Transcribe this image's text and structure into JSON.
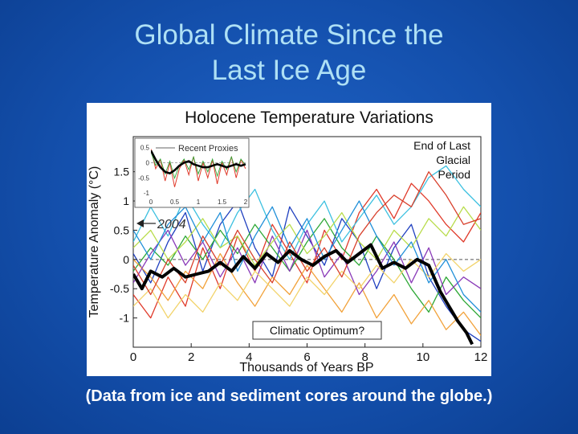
{
  "slide": {
    "title_line1": "Global Climate Since the",
    "title_line2": "Last Ice Age",
    "caption": "(Data from ice and sediment cores around the globe.)"
  },
  "colors": {
    "background": "#1450ad",
    "title": "#aee0f5",
    "caption": "#ffffff",
    "chart_background": "#ffffff",
    "average_line": "#000000",
    "proxy_colors": [
      "#1f3fbf",
      "#e03a2a",
      "#3cc0e0",
      "#2ea836",
      "#f2a23a",
      "#8a3ab8",
      "#b8dc4a",
      "#f2d36a",
      "#1f8fd8",
      "#d8402c"
    ]
  },
  "chart_data": [
    {
      "type": "line",
      "title": "Holocene Temperature Variations",
      "xlabel": "Thousands of Years BP",
      "ylabel": "Temperature Anomaly (°C)",
      "xlim": [
        0,
        12
      ],
      "ylim": [
        -1.5,
        2.1
      ],
      "x_ticks": [
        "0",
        "2",
        "4",
        "6",
        "8",
        "10",
        "12"
      ],
      "y_ticks": [
        "1.5",
        "1",
        "0.5",
        "0",
        "-0.5",
        "-1"
      ],
      "annotations": {
        "marker_2004": "2004",
        "end_of_glacial": [
          "End of Last",
          "Glacial",
          "Period"
        ],
        "climatic_optimum": "Climatic Optimum?"
      },
      "average_series": {
        "x": [
          0,
          0.3,
          0.6,
          1.0,
          1.4,
          1.8,
          2.2,
          2.6,
          3.0,
          3.4,
          3.8,
          4.2,
          4.6,
          5.0,
          5.4,
          5.8,
          6.2,
          6.6,
          7.0,
          7.4,
          7.8,
          8.2,
          8.6,
          9.0,
          9.4,
          9.8,
          10.2,
          10.6,
          10.9,
          11.2,
          11.5,
          11.7
        ],
        "y": [
          -0.25,
          -0.5,
          -0.2,
          -0.3,
          -0.15,
          -0.3,
          -0.25,
          -0.2,
          -0.05,
          -0.2,
          0.05,
          -0.15,
          0.1,
          -0.05,
          0.15,
          0.0,
          -0.1,
          0.05,
          0.15,
          -0.05,
          0.1,
          0.25,
          -0.15,
          -0.05,
          -0.15,
          0.0,
          -0.1,
          -0.55,
          -0.8,
          -1.05,
          -1.25,
          -1.45
        ]
      },
      "proxy_series": [
        {
          "x": [
            0,
            0.6,
            1.2,
            1.8,
            2.4,
            3.0,
            3.6,
            4.2,
            4.8,
            5.4,
            6.0,
            6.6,
            7.2,
            7.8,
            8.4,
            9.0,
            9.6,
            10.2,
            10.8,
            11.4,
            12.0
          ],
          "y": [
            0.1,
            -0.4,
            0.3,
            0.8,
            -0.2,
            0.6,
            1.0,
            0.2,
            -0.3,
            0.9,
            0.4,
            -0.1,
            0.7,
            0.3,
            -0.5,
            0.2,
            0.6,
            -0.3,
            -0.8,
            -1.2,
            -1.4
          ]
        },
        {
          "x": [
            0,
            0.6,
            1.2,
            1.8,
            2.4,
            3.0,
            3.6,
            4.2,
            4.8,
            5.4,
            6.0,
            6.6,
            7.2,
            7.8,
            8.4,
            9.0,
            9.6,
            10.2,
            10.8,
            11.4,
            12.0
          ],
          "y": [
            -0.6,
            -1.0,
            -0.3,
            -0.8,
            0.2,
            -0.5,
            0.4,
            -0.2,
            0.6,
            0.1,
            -0.4,
            0.5,
            0.0,
            0.8,
            1.2,
            0.7,
            1.3,
            1.0,
            0.6,
            0.3,
            0.8
          ]
        },
        {
          "x": [
            0,
            0.6,
            1.2,
            1.8,
            2.4,
            3.0,
            3.6,
            4.2,
            4.8,
            5.4,
            6.0,
            6.6,
            7.2,
            7.8,
            8.4,
            9.0,
            9.6,
            10.2,
            10.8,
            11.4,
            12.0
          ],
          "y": [
            0.3,
            0.9,
            0.4,
            1.1,
            0.6,
            0.2,
            0.8,
            1.2,
            0.5,
            0.0,
            0.6,
            1.0,
            0.3,
            0.7,
            1.1,
            0.6,
            0.9,
            1.4,
            1.6,
            1.2,
            0.9
          ]
        },
        {
          "x": [
            0,
            0.6,
            1.2,
            1.8,
            2.4,
            3.0,
            3.6,
            4.2,
            4.8,
            5.4,
            6.0,
            6.6,
            7.2,
            7.8,
            8.4,
            9.0,
            9.6,
            10.2,
            10.8,
            11.4,
            12.0
          ],
          "y": [
            -0.2,
            0.2,
            -0.1,
            0.4,
            0.0,
            0.5,
            0.1,
            0.6,
            0.2,
            -0.2,
            0.3,
            0.7,
            0.2,
            -0.1,
            0.4,
            0.0,
            -0.5,
            -0.9,
            -0.3,
            -0.7,
            -1.0
          ]
        },
        {
          "x": [
            0,
            0.6,
            1.2,
            1.8,
            2.4,
            3.0,
            3.6,
            4.2,
            4.8,
            5.4,
            6.0,
            6.6,
            7.2,
            7.8,
            8.4,
            9.0,
            9.6,
            10.2,
            10.8,
            11.4,
            12.0
          ],
          "y": [
            0.0,
            -0.3,
            -0.7,
            -0.2,
            -0.5,
            0.1,
            -0.4,
            -0.8,
            -0.3,
            -0.6,
            -0.1,
            -0.5,
            -0.9,
            -0.4,
            -1.0,
            -0.6,
            -1.1,
            -0.7,
            -1.2,
            -0.9,
            -1.3
          ]
        },
        {
          "x": [
            0,
            0.6,
            1.2,
            1.8,
            2.4,
            3.0,
            3.6,
            4.2,
            4.8,
            5.4,
            6.0,
            6.6,
            7.2,
            7.8,
            8.4,
            9.0,
            9.6,
            10.2,
            10.8,
            11.4,
            12.0
          ],
          "y": [
            -0.4,
            0.1,
            0.5,
            -0.1,
            0.3,
            -0.3,
            0.2,
            -0.4,
            0.4,
            -0.2,
            0.5,
            -0.3,
            0.1,
            -0.6,
            -0.2,
            0.3,
            -0.4,
            0.2,
            -0.6,
            -0.3,
            -0.5
          ]
        },
        {
          "x": [
            0,
            0.6,
            1.2,
            1.8,
            2.4,
            3.0,
            3.6,
            4.2,
            4.8,
            5.4,
            6.0,
            6.6,
            7.2,
            7.8,
            8.4,
            9.0,
            9.6,
            10.2,
            10.8,
            11.4,
            12.0
          ],
          "y": [
            0.2,
            0.5,
            0.0,
            0.3,
            0.7,
            0.2,
            0.4,
            -0.1,
            0.3,
            0.6,
            0.1,
            0.4,
            0.8,
            0.3,
            0.0,
            0.5,
            0.2,
            0.7,
            0.4,
            0.9,
            0.5
          ]
        },
        {
          "x": [
            0,
            0.6,
            1.2,
            1.8,
            2.4,
            3.0,
            3.6,
            4.2,
            4.8,
            5.4,
            6.0,
            6.6,
            7.2,
            7.8,
            8.4,
            9.0,
            9.6,
            10.2,
            10.8,
            11.4,
            12.0
          ],
          "y": [
            -0.8,
            -0.5,
            -1.0,
            -0.6,
            -0.9,
            -0.4,
            -0.7,
            -0.2,
            -0.5,
            -0.8,
            -0.3,
            -0.6,
            -0.2,
            -0.5,
            -0.1,
            -0.4,
            0.0,
            -0.3,
            0.1,
            -0.2,
            0.0
          ]
        },
        {
          "x": [
            0,
            0.6,
            1.2,
            1.8,
            2.4,
            3.0,
            3.6,
            4.2,
            4.8,
            5.4,
            6.0,
            6.6,
            7.2,
            7.8,
            8.4,
            9.0,
            9.6,
            10.2,
            10.8,
            11.4,
            12.0
          ],
          "y": [
            0.5,
            0.0,
            0.6,
            0.9,
            0.3,
            0.8,
            -0.2,
            0.4,
            0.9,
            0.2,
            0.7,
            0.0,
            0.5,
            1.0,
            0.4,
            -0.1,
            0.3,
            -0.4,
            0.0,
            -0.6,
            -0.9
          ]
        },
        {
          "x": [
            0,
            0.6,
            1.2,
            1.8,
            2.4,
            3.0,
            3.6,
            4.2,
            4.8,
            5.4,
            6.0,
            6.6,
            7.2,
            7.8,
            8.4,
            9.0,
            9.6,
            10.2,
            10.8,
            11.4,
            12.0
          ],
          "y": [
            -0.1,
            -0.6,
            0.0,
            -0.4,
            0.4,
            -0.1,
            0.5,
            0.0,
            -0.4,
            0.3,
            -0.2,
            0.2,
            -0.3,
            0.4,
            0.8,
            1.1,
            0.9,
            1.5,
            1.1,
            0.6,
            0.7
          ]
        }
      ]
    },
    {
      "type": "line",
      "title": "Recent Proxies",
      "xlim": [
        0,
        2
      ],
      "ylim": [
        -1.1,
        0.7
      ],
      "x_ticks": [
        "0",
        "0.5",
        "1",
        "1.5",
        "2"
      ],
      "y_ticks": [
        "0.5",
        "0",
        "-0.5",
        "-1"
      ],
      "average_series": {
        "x": [
          0,
          0.1,
          0.2,
          0.3,
          0.4,
          0.5,
          0.6,
          0.7,
          0.8,
          0.9,
          1.0,
          1.1,
          1.2,
          1.3,
          1.4,
          1.5,
          1.6,
          1.7,
          1.8,
          1.9,
          2.0
        ],
        "y": [
          0.4,
          0.1,
          -0.15,
          -0.3,
          -0.35,
          -0.25,
          -0.1,
          0.0,
          0.05,
          -0.05,
          -0.1,
          -0.15,
          -0.15,
          -0.1,
          -0.05,
          -0.1,
          -0.15,
          -0.1,
          -0.05,
          -0.1,
          -0.05
        ]
      },
      "red_series": {
        "x": [
          0,
          0.1,
          0.2,
          0.3,
          0.4,
          0.5,
          0.6,
          0.7,
          0.8,
          0.9,
          1.0,
          1.1,
          1.2,
          1.3,
          1.4,
          1.5,
          1.6,
          1.7,
          1.8,
          1.9,
          2.0
        ],
        "y": [
          0.45,
          -0.2,
          0.1,
          -0.6,
          0.0,
          -0.8,
          -0.2,
          0.1,
          -0.4,
          0.2,
          -0.6,
          0.0,
          -0.5,
          0.1,
          -0.7,
          0.0,
          -0.4,
          0.2,
          -0.5,
          0.1,
          -0.2
        ]
      }
    }
  ]
}
